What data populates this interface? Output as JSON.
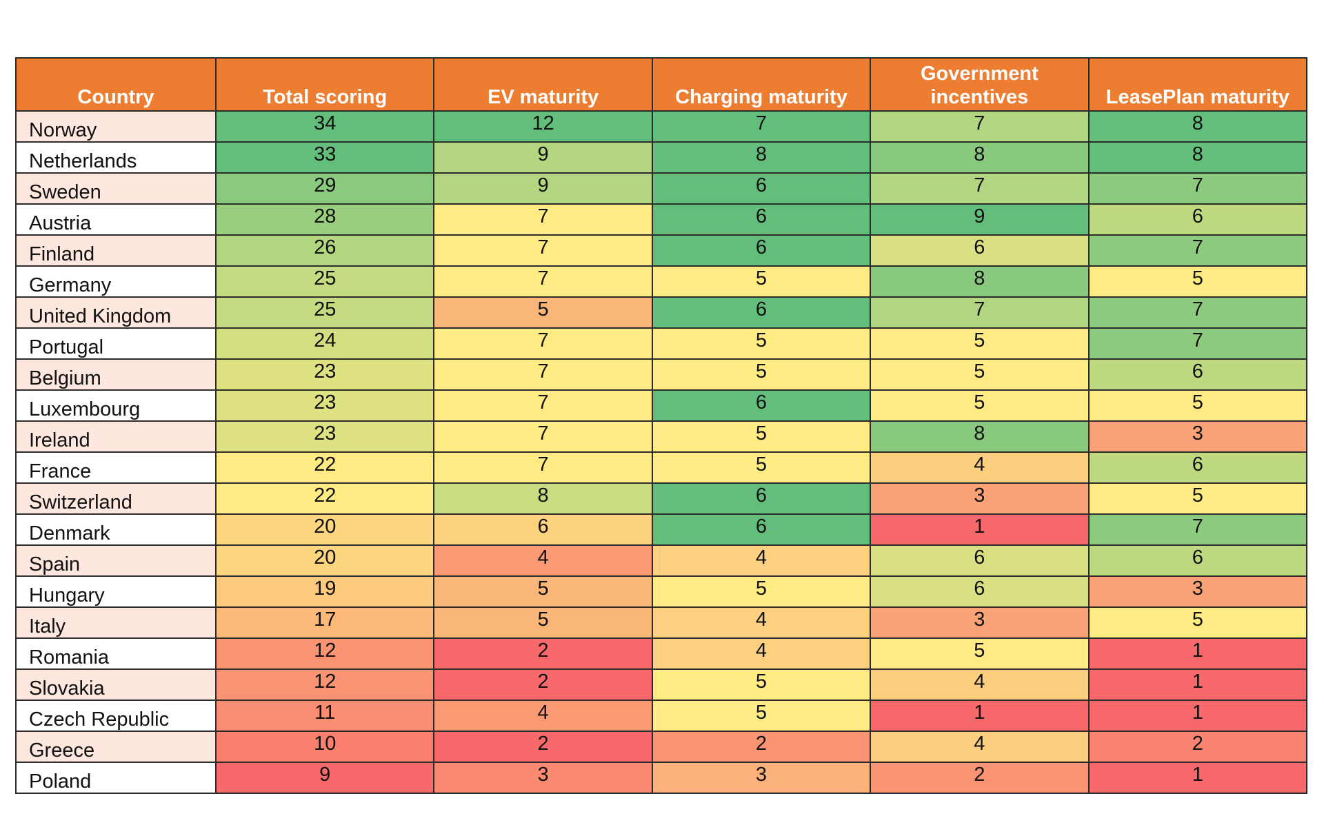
{
  "chart_data": {
    "type": "heatmap",
    "columns": [
      "Country",
      "Total scoring",
      "EV maturity",
      "Charging maturity",
      "Government incentives",
      "LeasePlan maturity"
    ],
    "header_lines": [
      [
        "Country"
      ],
      [
        "Total scoring"
      ],
      [
        "EV maturity"
      ],
      [
        "Charging maturity"
      ],
      [
        "Government",
        "incentives"
      ],
      [
        "LeasePlan maturity"
      ]
    ],
    "rows": [
      {
        "country": "Norway",
        "values": [
          34,
          12,
          7,
          7,
          8
        ]
      },
      {
        "country": "Netherlands",
        "values": [
          33,
          9,
          8,
          8,
          8
        ]
      },
      {
        "country": "Sweden",
        "values": [
          29,
          9,
          6,
          7,
          7
        ]
      },
      {
        "country": "Austria",
        "values": [
          28,
          7,
          6,
          9,
          6
        ]
      },
      {
        "country": "Finland",
        "values": [
          26,
          7,
          6,
          6,
          7
        ]
      },
      {
        "country": "Germany",
        "values": [
          25,
          7,
          5,
          8,
          5
        ]
      },
      {
        "country": "United Kingdom",
        "values": [
          25,
          5,
          6,
          7,
          7
        ]
      },
      {
        "country": "Portugal",
        "values": [
          24,
          7,
          5,
          5,
          7
        ]
      },
      {
        "country": "Belgium",
        "values": [
          23,
          7,
          5,
          5,
          6
        ]
      },
      {
        "country": "Luxembourg",
        "values": [
          23,
          7,
          6,
          5,
          5
        ]
      },
      {
        "country": "Ireland",
        "values": [
          23,
          7,
          5,
          8,
          3
        ]
      },
      {
        "country": "France",
        "values": [
          22,
          7,
          5,
          4,
          6
        ]
      },
      {
        "country": "Switzerland",
        "values": [
          22,
          8,
          6,
          3,
          5
        ]
      },
      {
        "country": "Denmark",
        "values": [
          20,
          6,
          6,
          1,
          7
        ]
      },
      {
        "country": "Spain",
        "values": [
          20,
          4,
          4,
          6,
          6
        ]
      },
      {
        "country": "Hungary",
        "values": [
          19,
          5,
          5,
          6,
          3
        ]
      },
      {
        "country": "Italy",
        "values": [
          17,
          5,
          4,
          3,
          5
        ]
      },
      {
        "country": "Romania",
        "values": [
          12,
          2,
          4,
          5,
          1
        ]
      },
      {
        "country": "Slovakia",
        "values": [
          12,
          2,
          5,
          4,
          1
        ]
      },
      {
        "country": "Czech Republic",
        "values": [
          11,
          4,
          5,
          1,
          1
        ]
      },
      {
        "country": "Greece",
        "values": [
          10,
          2,
          2,
          4,
          2
        ]
      },
      {
        "country": "Poland",
        "values": [
          9,
          3,
          3,
          2,
          1
        ]
      }
    ],
    "cell_colors": [
      [
        "#63be7b",
        "#63be7b",
        "#63be7b",
        "#b1d580",
        "#63be7b"
      ],
      [
        "#63be7b",
        "#b5d681",
        "#63be7b",
        "#88c97e",
        "#63be7b"
      ],
      [
        "#8bca7e",
        "#b5d681",
        "#63be7b",
        "#b1d580",
        "#8ccb7e"
      ],
      [
        "#9ace7f",
        "#ffeb84",
        "#63be7b",
        "#63be7b",
        "#bfd981"
      ],
      [
        "#b3d680",
        "#ffeb84",
        "#63be7b",
        "#d9e082",
        "#8ccb7e"
      ],
      [
        "#c5db81",
        "#ffeb84",
        "#ffeb84",
        "#88c97e",
        "#ffeb84"
      ],
      [
        "#c5db81",
        "#fbb67a",
        "#63be7b",
        "#b1d580",
        "#8ccb7e"
      ],
      [
        "#d4df82",
        "#ffeb84",
        "#ffeb84",
        "#ffeb84",
        "#8ccb7e"
      ],
      [
        "#dfe283",
        "#ffeb84",
        "#ffeb84",
        "#ffeb84",
        "#bfd981"
      ],
      [
        "#dfe283",
        "#ffeb84",
        "#63be7b",
        "#ffeb84",
        "#ffeb84"
      ],
      [
        "#dfe283",
        "#ffeb84",
        "#ffeb84",
        "#88c97e",
        "#fba276"
      ],
      [
        "#ffeb84",
        "#ffeb84",
        "#ffeb84",
        "#fdce7e",
        "#bfd981"
      ],
      [
        "#ffeb84",
        "#c9dc81",
        "#63be7b",
        "#fba276",
        "#ffeb84"
      ],
      [
        "#fed680",
        "#fed380",
        "#63be7b",
        "#f8696b",
        "#8ccb7e"
      ],
      [
        "#fed680",
        "#fa9a74",
        "#fdd07f",
        "#d9e082",
        "#bfd981"
      ],
      [
        "#fdc97d",
        "#fbb67a",
        "#ffeb84",
        "#d9e082",
        "#fba276"
      ],
      [
        "#fcb97a",
        "#fbb67a",
        "#fdd07f",
        "#fba276",
        "#ffeb84"
      ],
      [
        "#fa9473",
        "#f8696b",
        "#fdd07f",
        "#ffeb84",
        "#f8696b"
      ],
      [
        "#fa9473",
        "#f8696b",
        "#ffeb84",
        "#fdce7e",
        "#f8696b"
      ],
      [
        "#fa8d72",
        "#fa9a74",
        "#ffeb84",
        "#f8696b",
        "#f8696b"
      ],
      [
        "#f9806f",
        "#f8696b",
        "#fa9473",
        "#fdce7e",
        "#f98470"
      ],
      [
        "#f8696b",
        "#fa8a71",
        "#fbb27a",
        "#fa9473",
        "#f8696b"
      ]
    ]
  }
}
